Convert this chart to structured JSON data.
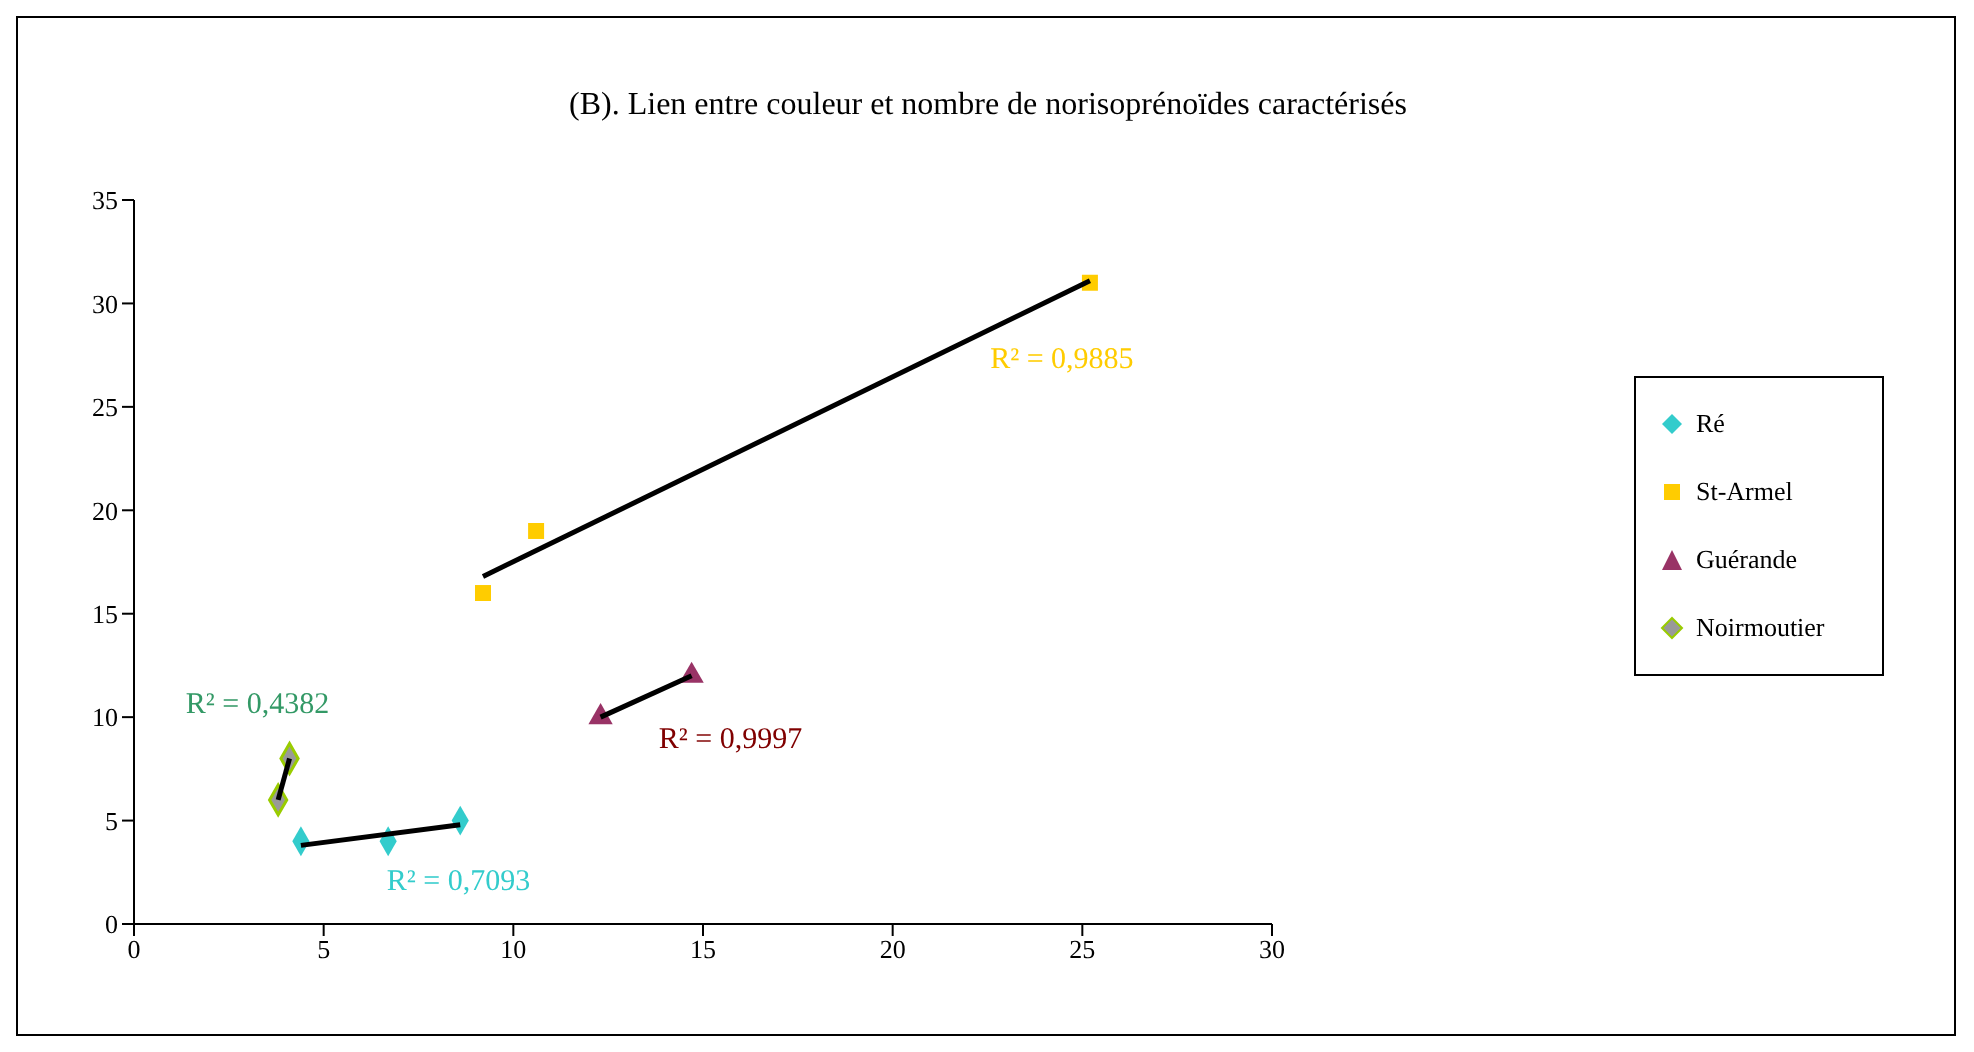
{
  "chart_data": {
    "type": "scatter",
    "title": "(B). Lien entre couleur et  nombre de norisoprénoïdes caractérisés",
    "xlim": [
      0,
      30
    ],
    "xticks": [
      0,
      5,
      10,
      15,
      20,
      25,
      30
    ],
    "ylim": [
      0,
      35
    ],
    "yticks": [
      0,
      5,
      10,
      15,
      20,
      25,
      30,
      35
    ],
    "grid": false,
    "legend": "right",
    "series": [
      {
        "name": "Ré",
        "marker": "diamond",
        "color": "#33cccc",
        "x": [
          4.4,
          6.7,
          8.6
        ],
        "values": [
          4,
          4,
          5
        ]
      },
      {
        "name": "St-Armel",
        "marker": "square",
        "color": "#ffcc00",
        "x": [
          9.2,
          10.6,
          25.2
        ],
        "values": [
          16,
          19,
          31
        ]
      },
      {
        "name": "Guérande",
        "marker": "triangle",
        "color": "#993366",
        "x": [
          12.3,
          14.7
        ],
        "values": [
          10,
          12
        ]
      },
      {
        "name": "Noirmoutier",
        "marker": "diamond",
        "color": "#999999",
        "x": [
          3.8,
          4.1
        ],
        "values": [
          6,
          8
        ]
      },
      {
        "type": "line",
        "marker": "none",
        "color": "#000000",
        "x": [
          4.4,
          8.6
        ],
        "values": [
          3.8,
          4.8
        ]
      },
      {
        "type": "line",
        "marker": "none",
        "color": "#000000",
        "x": [
          9.2,
          25.2
        ],
        "values": [
          16.8,
          31.1
        ]
      },
      {
        "type": "line",
        "marker": "none",
        "color": "#000000",
        "x": [
          12.3,
          14.7
        ],
        "values": [
          10,
          12
        ]
      },
      {
        "type": "line",
        "marker": "none",
        "color": "#000000",
        "x": [
          3.8,
          4.1
        ],
        "values": [
          6,
          8
        ]
      }
    ],
    "annotations": [
      "R² = 0,7093",
      "R² = 0,9885",
      "R² = 0,9997",
      "R² = 0,4382"
    ]
  }
}
